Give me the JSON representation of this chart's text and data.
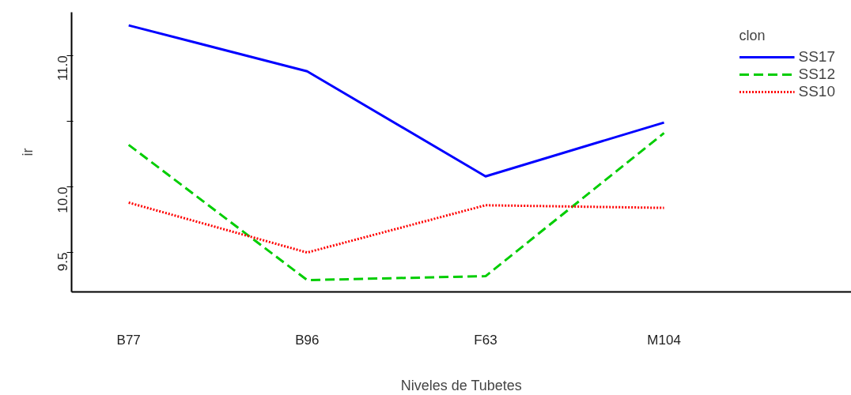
{
  "chart_data": {
    "type": "line",
    "xlabel": "Niveles de Tubetes",
    "ylabel": "ir",
    "legend_title": "clon",
    "legend": "top right",
    "grid": false,
    "categories": [
      "B77",
      "B96",
      "F63",
      "M104"
    ],
    "ylim": [
      9.2,
      11.33
    ],
    "yticks": [
      9.5,
      {
        "value": 10.0,
        "label": "10.0"
      },
      {
        "value": 10.5,
        "label": null
      },
      {
        "value": 11.0,
        "label": "11.0"
      }
    ],
    "series": [
      {
        "name": "SS17",
        "color": "#0000ff",
        "line_style": "solid",
        "values": [
          11.23,
          10.88,
          10.08,
          10.49
        ]
      },
      {
        "name": "SS12",
        "color": "#00cd00",
        "line_style": "dashed",
        "values": [
          10.32,
          9.29,
          9.32,
          10.41
        ]
      },
      {
        "name": "SS10",
        "color": "#ff0000",
        "line_style": "dotted",
        "values": [
          9.88,
          9.5,
          9.86,
          9.84
        ]
      }
    ]
  }
}
